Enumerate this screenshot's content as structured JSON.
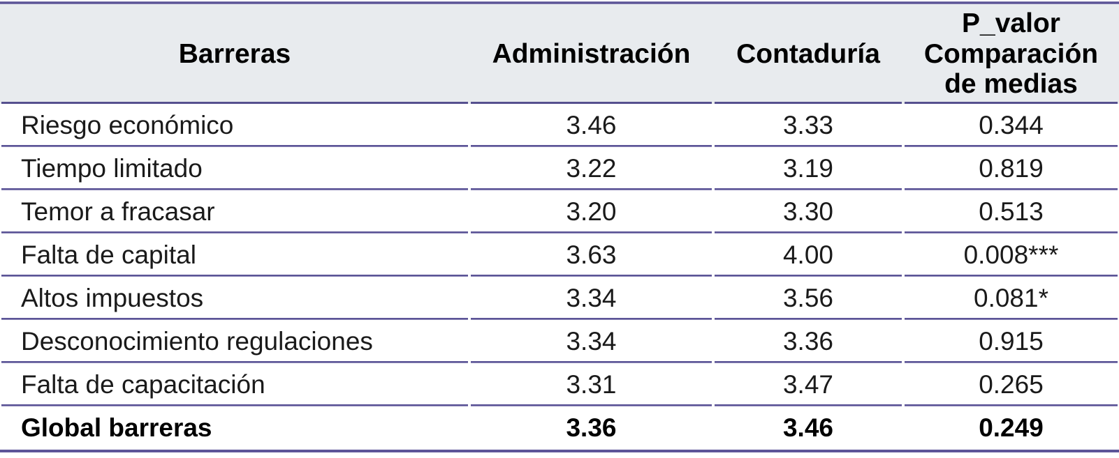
{
  "page": {
    "background": "#FFFFFF",
    "accent_border_color": "#5B5496",
    "header_background": "#E8EBEE",
    "text_color": "#1A1A1A"
  },
  "table": {
    "columns": [
      {
        "id": "barreras",
        "label": "Barreras"
      },
      {
        "id": "administracion",
        "label": "Administración"
      },
      {
        "id": "contaduria",
        "label": "Contaduría"
      },
      {
        "id": "p_valor",
        "label": "P_valor\nComparación\nde medias"
      }
    ],
    "rows": [
      {
        "barrier": "Riesgo económico",
        "administracion": "3.46",
        "contaduria": "3.33",
        "p_valor": "0.344"
      },
      {
        "barrier": "Tiempo limitado",
        "administracion": "3.22",
        "contaduria": "3.19",
        "p_valor": "0.819"
      },
      {
        "barrier": "Temor a fracasar",
        "administracion": "3.20",
        "contaduria": "3.30",
        "p_valor": "0.513"
      },
      {
        "barrier": "Falta de capital",
        "administracion": "3.63",
        "contaduria": "4.00",
        "p_valor": "0.008***"
      },
      {
        "barrier": "Altos impuestos",
        "administracion": "3.34",
        "contaduria": "3.56",
        "p_valor": "0.081*"
      },
      {
        "barrier": "Desconocimiento regulaciones",
        "administracion": "3.34",
        "contaduria": "3.36",
        "p_valor": "0.915"
      },
      {
        "barrier": "Falta de capacitación",
        "administracion": "3.31",
        "contaduria": "3.47",
        "p_valor": "0.265"
      },
      {
        "barrier": "Global barreras",
        "administracion": "3.36",
        "contaduria": "3.46",
        "p_valor": "0.249",
        "emphasis": "bold"
      }
    ]
  }
}
